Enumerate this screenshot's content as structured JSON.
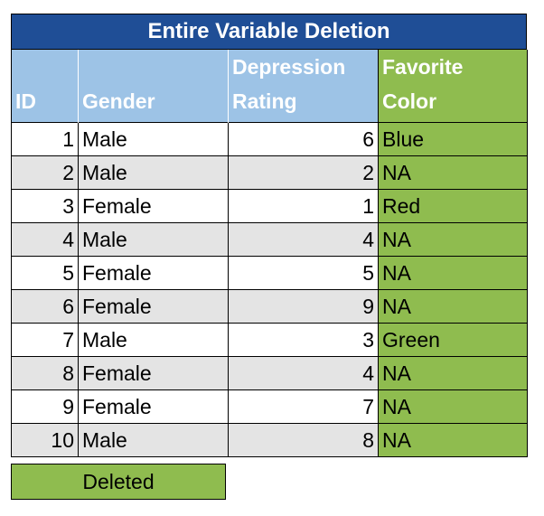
{
  "title": "Entire Variable Deletion",
  "headers": {
    "id": "ID",
    "gender": "Gender",
    "depression_line1": "Depression",
    "depression_line2": "Rating",
    "color_line1": "Favorite",
    "color_line2": "Color"
  },
  "rows": [
    {
      "id": "1",
      "gender": "Male",
      "rating": "6",
      "color": "Blue"
    },
    {
      "id": "2",
      "gender": "Male",
      "rating": "2",
      "color": "NA"
    },
    {
      "id": "3",
      "gender": "Female",
      "rating": "1",
      "color": "Red"
    },
    {
      "id": "4",
      "gender": "Male",
      "rating": "4",
      "color": "NA"
    },
    {
      "id": "5",
      "gender": "Female",
      "rating": "5",
      "color": "NA"
    },
    {
      "id": "6",
      "gender": "Female",
      "rating": "9",
      "color": "NA"
    },
    {
      "id": "7",
      "gender": "Male",
      "rating": "3",
      "color": "Green"
    },
    {
      "id": "8",
      "gender": "Female",
      "rating": "4",
      "color": "NA"
    },
    {
      "id": "9",
      "gender": "Female",
      "rating": "7",
      "color": "NA"
    },
    {
      "id": "10",
      "gender": "Male",
      "rating": "8",
      "color": "NA"
    }
  ],
  "legend": "Deleted",
  "colors": {
    "title_bg": "#1f4e96",
    "header_bg": "#9dc3e6",
    "deleted_green": "#8fbc4f",
    "stripe_gray": "#e4e4e4"
  }
}
